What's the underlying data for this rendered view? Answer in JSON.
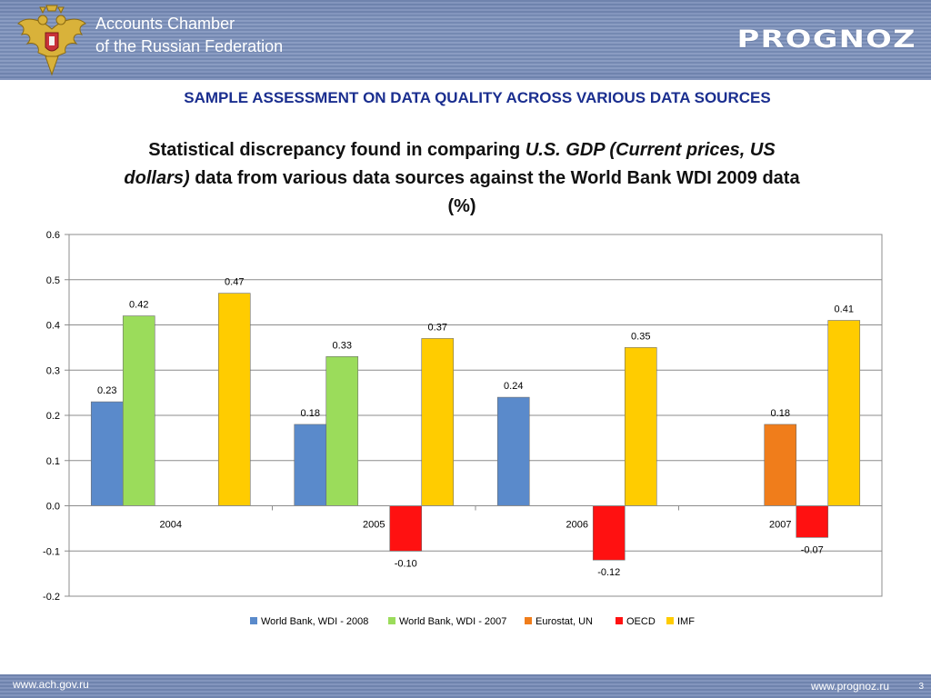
{
  "header": {
    "org_line1": "Accounts Chamber",
    "org_line2": "of the Russian Federation",
    "brand": "PROGNOZ"
  },
  "slide_heading": "SAMPLE ASSESSMENT ON DATA QUALITY ACROSS VARIOUS DATA SOURCES",
  "chart_title": {
    "part1": "Statistical discrepancy found in comparing ",
    "italic": "U.S. GDP (Current prices, US dollars)",
    "part2": " data from various data sources against the World Bank WDI 2009 data (%)"
  },
  "chart_data": {
    "type": "bar",
    "categories": [
      "2004",
      "2005",
      "2006",
      "2007"
    ],
    "series": [
      {
        "name": "World Bank, WDI - 2008",
        "color": "#5a8acb",
        "values": [
          0.23,
          0.18,
          0.24,
          null
        ],
        "labels": [
          "0.23",
          "0.18",
          "0.24",
          ""
        ]
      },
      {
        "name": "World Bank, WDI - 2007",
        "color": "#9bdc5b",
        "values": [
          0.42,
          0.33,
          null,
          null
        ],
        "labels": [
          "0.42",
          "0.33",
          "",
          ""
        ]
      },
      {
        "name": "Eurostat, UN",
        "color": "#f07d1b",
        "values": [
          null,
          null,
          null,
          0.18
        ],
        "labels": [
          "",
          "",
          "",
          "0.18"
        ]
      },
      {
        "name": "OECD",
        "color": "#ff1111",
        "values": [
          null,
          -0.1,
          -0.12,
          -0.07
        ],
        "labels": [
          "",
          "-0.10",
          "-0.12",
          "-0.07"
        ]
      },
      {
        "name": "IMF",
        "color": "#ffcc00",
        "values": [
          0.47,
          0.37,
          0.35,
          0.41
        ],
        "labels": [
          "0.47",
          "0.37",
          "0.35",
          "0.41"
        ]
      }
    ],
    "y_ticks": [
      "0.6",
      "0.5",
      "0.4",
      "0.3",
      "0.2",
      "0.1",
      "0.0",
      "-0.1",
      "-0.2"
    ],
    "ylim": [
      -0.2,
      0.6
    ],
    "grid": true,
    "legend_position": "bottom"
  },
  "footer": {
    "left_url": "www.ach.gov.ru",
    "right_url": "www.prognoz.ru",
    "page": "3"
  }
}
